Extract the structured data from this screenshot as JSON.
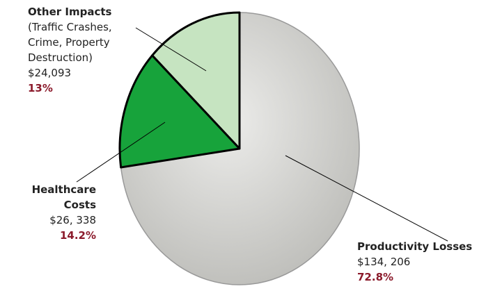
{
  "chart_data": {
    "type": "pie",
    "categories": [
      "Other Impacts",
      "Healthcare Costs",
      "Productivity Losses"
    ],
    "values": [
      13,
      14.2,
      72.8
    ],
    "value_labels": [
      "13%",
      "14.2%",
      "72.8%"
    ],
    "amounts": [
      24093,
      26338,
      134206
    ],
    "amount_labels": [
      "$24,093",
      "$26, 338",
      "$134, 206"
    ],
    "colors": [
      "#c6e4c1",
      "#17a33b",
      "#d6d6d2"
    ],
    "annotations": [
      {
        "text": "(Traffic Crashes, Crime, Property Destruction)"
      }
    ]
  }
}
